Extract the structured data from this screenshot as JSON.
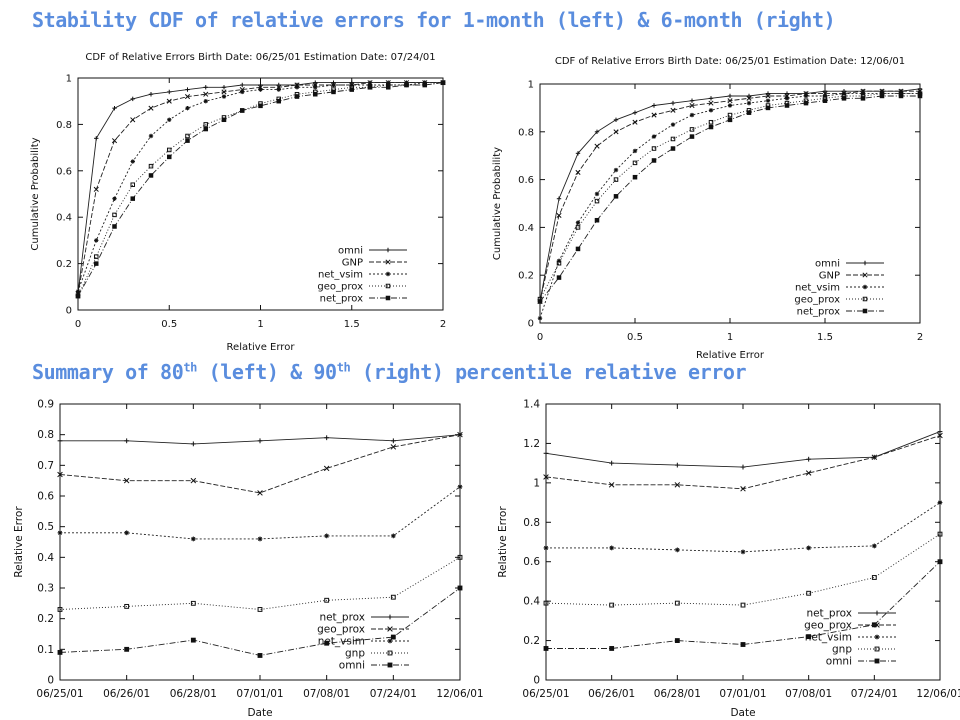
{
  "headings": {
    "stability": "Stability CDF of relative errors for 1-month (left) & 6-month (right)",
    "summary_a": "Summary of 80",
    "summary_sup1": "th",
    "summary_b": " (left) & 90",
    "summary_sup2": "th",
    "summary_c": " (right) percentile relative error"
  },
  "chart_data": [
    {
      "type": "line",
      "title": "CDF of Relative Errors Birth Date: 06/25/01 Estimation Date: 07/24/01",
      "xlabel": "Relative Error",
      "ylabel": "Cumulative Probability",
      "xlim": [
        0,
        2
      ],
      "ylim": [
        0,
        1
      ],
      "xticks": [
        "0",
        "0.5",
        "1",
        "1.5",
        "2"
      ],
      "yticks": [
        "0",
        "0.2",
        "0.4",
        "0.6",
        "0.8",
        "1"
      ],
      "grid": false,
      "legend": "bottom-right",
      "x": [
        0,
        0.1,
        0.2,
        0.3,
        0.4,
        0.5,
        0.6,
        0.7,
        0.8,
        0.9,
        1.0,
        1.1,
        1.2,
        1.3,
        1.4,
        1.5,
        1.6,
        1.7,
        1.8,
        1.9,
        2.0
      ],
      "series": [
        {
          "name": "omni",
          "marker": "plus",
          "dash": "",
          "values": [
            0.07,
            0.74,
            0.87,
            0.91,
            0.93,
            0.94,
            0.95,
            0.96,
            0.96,
            0.97,
            0.97,
            0.97,
            0.97,
            0.98,
            0.98,
            0.98,
            0.98,
            0.98,
            0.98,
            0.98,
            0.98
          ]
        },
        {
          "name": "GNP",
          "marker": "cross",
          "dash": "5,2",
          "values": [
            0.07,
            0.52,
            0.73,
            0.82,
            0.87,
            0.9,
            0.92,
            0.93,
            0.94,
            0.95,
            0.96,
            0.96,
            0.97,
            0.97,
            0.97,
            0.97,
            0.98,
            0.98,
            0.98,
            0.98,
            0.98
          ]
        },
        {
          "name": "net_vsim",
          "marker": "star",
          "dash": "2,2",
          "values": [
            0.08,
            0.3,
            0.48,
            0.64,
            0.75,
            0.82,
            0.87,
            0.9,
            0.92,
            0.94,
            0.95,
            0.95,
            0.96,
            0.96,
            0.97,
            0.97,
            0.97,
            0.97,
            0.97,
            0.98,
            0.98
          ]
        },
        {
          "name": "geo_prox",
          "marker": "square",
          "dash": "1,2",
          "values": [
            0.06,
            0.23,
            0.41,
            0.54,
            0.62,
            0.69,
            0.75,
            0.8,
            0.83,
            0.86,
            0.89,
            0.91,
            0.93,
            0.94,
            0.95,
            0.96,
            0.96,
            0.97,
            0.97,
            0.97,
            0.98
          ]
        },
        {
          "name": "net_prox",
          "marker": "filled-square",
          "dash": "6,2,1,2",
          "values": [
            0.06,
            0.2,
            0.36,
            0.48,
            0.58,
            0.66,
            0.73,
            0.78,
            0.82,
            0.86,
            0.88,
            0.9,
            0.92,
            0.93,
            0.94,
            0.95,
            0.96,
            0.96,
            0.97,
            0.97,
            0.98
          ]
        }
      ]
    },
    {
      "type": "line",
      "title": "CDF of Relative Errors Birth Date: 06/25/01 Estimation Date: 12/06/01",
      "xlabel": "Relative Error",
      "ylabel": "Cumulative Probability",
      "xlim": [
        0,
        2
      ],
      "ylim": [
        0,
        1
      ],
      "xticks": [
        "0",
        "0.5",
        "1",
        "1.5",
        "2"
      ],
      "yticks": [
        "0",
        "0.2",
        "0.4",
        "0.6",
        "0.8",
        "1"
      ],
      "grid": false,
      "legend": "bottom-right",
      "x": [
        0,
        0.1,
        0.2,
        0.3,
        0.4,
        0.5,
        0.6,
        0.7,
        0.8,
        0.9,
        1.0,
        1.1,
        1.2,
        1.3,
        1.4,
        1.5,
        1.6,
        1.7,
        1.8,
        1.9,
        2.0
      ],
      "series": [
        {
          "name": "omni",
          "marker": "plus",
          "dash": "",
          "values": [
            0.09,
            0.52,
            0.71,
            0.8,
            0.85,
            0.88,
            0.91,
            0.92,
            0.93,
            0.94,
            0.95,
            0.95,
            0.96,
            0.96,
            0.96,
            0.97,
            0.97,
            0.97,
            0.97,
            0.97,
            0.98
          ]
        },
        {
          "name": "GNP",
          "marker": "cross",
          "dash": "5,2",
          "values": [
            0.09,
            0.45,
            0.63,
            0.74,
            0.8,
            0.84,
            0.87,
            0.89,
            0.91,
            0.92,
            0.93,
            0.94,
            0.95,
            0.95,
            0.96,
            0.96,
            0.96,
            0.97,
            0.97,
            0.97,
            0.97
          ]
        },
        {
          "name": "net_vsim",
          "marker": "star",
          "dash": "2,2",
          "values": [
            0.02,
            0.26,
            0.42,
            0.54,
            0.64,
            0.72,
            0.78,
            0.83,
            0.87,
            0.89,
            0.91,
            0.92,
            0.93,
            0.94,
            0.95,
            0.95,
            0.96,
            0.96,
            0.96,
            0.96,
            0.96
          ]
        },
        {
          "name": "geo_prox",
          "marker": "square",
          "dash": "1,2",
          "values": [
            0.1,
            0.25,
            0.4,
            0.51,
            0.6,
            0.67,
            0.73,
            0.77,
            0.81,
            0.84,
            0.87,
            0.89,
            0.91,
            0.92,
            0.93,
            0.94,
            0.95,
            0.95,
            0.96,
            0.96,
            0.96
          ]
        },
        {
          "name": "net_prox",
          "marker": "filled-square",
          "dash": "6,2,1,2",
          "values": [
            0.09,
            0.19,
            0.31,
            0.43,
            0.53,
            0.61,
            0.68,
            0.73,
            0.78,
            0.82,
            0.85,
            0.88,
            0.9,
            0.91,
            0.92,
            0.93,
            0.94,
            0.94,
            0.95,
            0.95,
            0.95
          ]
        }
      ]
    },
    {
      "type": "line",
      "title": "",
      "xlabel": "Date",
      "ylabel": "Relative Error",
      "categories": [
        "06/25/01",
        "06/26/01",
        "06/28/01",
        "07/01/01",
        "07/08/01",
        "07/24/01",
        "12/06/01"
      ],
      "ylim": [
        0,
        0.9
      ],
      "yticks": [
        "0",
        "0.1",
        "0.2",
        "0.3",
        "0.4",
        "0.5",
        "0.6",
        "0.7",
        "0.8",
        "0.9"
      ],
      "grid": false,
      "legend": "bottom-right",
      "series": [
        {
          "name": "net_prox",
          "marker": "plus",
          "dash": "",
          "values": [
            0.78,
            0.78,
            0.77,
            0.78,
            0.79,
            0.78,
            0.8
          ]
        },
        {
          "name": "geo_prox",
          "marker": "cross",
          "dash": "5,2",
          "values": [
            0.67,
            0.65,
            0.65,
            0.61,
            0.69,
            0.76,
            0.8
          ]
        },
        {
          "name": "net_vsim",
          "marker": "star",
          "dash": "2,2",
          "values": [
            0.48,
            0.48,
            0.46,
            0.46,
            0.47,
            0.47,
            0.63
          ]
        },
        {
          "name": "gnp",
          "marker": "square",
          "dash": "1,2",
          "values": [
            0.23,
            0.24,
            0.25,
            0.23,
            0.26,
            0.27,
            0.4
          ]
        },
        {
          "name": "omni",
          "marker": "filled-square",
          "dash": "6,2,1,2",
          "values": [
            0.09,
            0.1,
            0.13,
            0.08,
            0.12,
            0.14,
            0.3
          ]
        }
      ]
    },
    {
      "type": "line",
      "title": "",
      "xlabel": "Date",
      "ylabel": "Relative Error",
      "categories": [
        "06/25/01",
        "06/26/01",
        "06/28/01",
        "07/01/01",
        "07/08/01",
        "07/24/01",
        "12/06/01"
      ],
      "ylim": [
        0,
        1.4
      ],
      "yticks": [
        "0",
        "0.2",
        "0.4",
        "0.6",
        "0.8",
        "1",
        "1.2",
        "1.4"
      ],
      "grid": false,
      "legend": "bottom-right",
      "series": [
        {
          "name": "net_prox",
          "marker": "plus",
          "dash": "",
          "values": [
            1.15,
            1.1,
            1.09,
            1.08,
            1.12,
            1.13,
            1.26
          ]
        },
        {
          "name": "geo_prox",
          "marker": "cross",
          "dash": "5,2",
          "values": [
            1.03,
            0.99,
            0.99,
            0.97,
            1.05,
            1.13,
            1.24
          ]
        },
        {
          "name": "net_vsim",
          "marker": "star",
          "dash": "2,2",
          "values": [
            0.67,
            0.67,
            0.66,
            0.65,
            0.67,
            0.68,
            0.9
          ]
        },
        {
          "name": "gnp",
          "marker": "square",
          "dash": "1,2",
          "values": [
            0.39,
            0.38,
            0.39,
            0.38,
            0.44,
            0.52,
            0.74
          ]
        },
        {
          "name": "omni",
          "marker": "filled-square",
          "dash": "6,2,1,2",
          "values": [
            0.16,
            0.16,
            0.2,
            0.18,
            0.22,
            0.28,
            0.6
          ]
        }
      ]
    }
  ]
}
